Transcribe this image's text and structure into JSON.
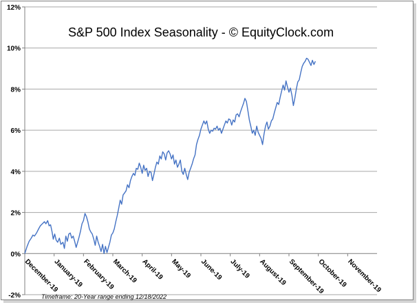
{
  "chart_data": {
    "type": "line",
    "title": "S&P 500 Index Seasonality - © EquityClock.com",
    "footnote": "Timeframe: 20-Year range ending 12/18/2022",
    "xlabel": "",
    "ylabel": "",
    "ylim": [
      -2,
      12
    ],
    "yticks": [
      -2,
      0,
      2,
      4,
      6,
      8,
      10,
      12
    ],
    "ytick_labels": [
      "-2%",
      "0%",
      "2%",
      "4%",
      "6%",
      "8%",
      "10%",
      "12%"
    ],
    "month_labels": [
      "December-19",
      "January-19",
      "February-19",
      "March-19",
      "April-19",
      "May-19",
      "June-19",
      "July-19",
      "August-19",
      "September-19",
      "October-19",
      "November-19"
    ],
    "x_range": [
      0,
      12
    ],
    "line_color": "#4472c4",
    "grid_color": "#a6a6a6",
    "series": [
      {
        "name": "S&P 500 Seasonality",
        "points": [
          [
            0.0,
            0.0
          ],
          [
            0.08,
            0.35
          ],
          [
            0.15,
            0.6
          ],
          [
            0.22,
            0.75
          ],
          [
            0.28,
            0.9
          ],
          [
            0.33,
            0.85
          ],
          [
            0.4,
            1.0
          ],
          [
            0.47,
            1.2
          ],
          [
            0.53,
            1.35
          ],
          [
            0.6,
            1.45
          ],
          [
            0.67,
            1.55
          ],
          [
            0.72,
            1.45
          ],
          [
            0.78,
            1.6
          ],
          [
            0.83,
            1.35
          ],
          [
            0.88,
            1.4
          ],
          [
            0.93,
            1.05
          ],
          [
            0.97,
            0.7
          ],
          [
            1.02,
            0.95
          ],
          [
            1.07,
            0.65
          ],
          [
            1.12,
            0.55
          ],
          [
            1.18,
            0.75
          ],
          [
            1.23,
            0.45
          ],
          [
            1.3,
            0.55
          ],
          [
            1.35,
            0.25
          ],
          [
            1.4,
            0.85
          ],
          [
            1.45,
            0.6
          ],
          [
            1.5,
            0.95
          ],
          [
            1.55,
            1.0
          ],
          [
            1.6,
            0.75
          ],
          [
            1.65,
            0.85
          ],
          [
            1.7,
            0.6
          ],
          [
            1.75,
            0.3
          ],
          [
            1.8,
            0.55
          ],
          [
            1.85,
            0.8
          ],
          [
            1.9,
            1.1
          ],
          [
            1.95,
            1.45
          ],
          [
            2.0,
            1.6
          ],
          [
            2.05,
            1.95
          ],
          [
            2.1,
            1.8
          ],
          [
            2.15,
            1.55
          ],
          [
            2.2,
            1.2
          ],
          [
            2.25,
            1.05
          ],
          [
            2.3,
            0.95
          ],
          [
            2.35,
            0.7
          ],
          [
            2.4,
            0.4
          ],
          [
            2.45,
            0.85
          ],
          [
            2.5,
            0.55
          ],
          [
            2.55,
            0.35
          ],
          [
            2.6,
            0.1
          ],
          [
            2.65,
            0.45
          ],
          [
            2.7,
            0.0
          ],
          [
            2.75,
            0.35
          ],
          [
            2.8,
            0.05
          ],
          [
            2.85,
            0.3
          ],
          [
            2.9,
            0.55
          ],
          [
            2.95,
            0.9
          ],
          [
            3.0,
            1.0
          ],
          [
            3.05,
            1.2
          ],
          [
            3.1,
            1.55
          ],
          [
            3.15,
            1.85
          ],
          [
            3.2,
            2.2
          ],
          [
            3.25,
            2.6
          ],
          [
            3.3,
            2.4
          ],
          [
            3.35,
            2.85
          ],
          [
            3.4,
            2.95
          ],
          [
            3.45,
            3.05
          ],
          [
            3.5,
            3.35
          ],
          [
            3.55,
            3.2
          ],
          [
            3.6,
            3.55
          ],
          [
            3.65,
            3.75
          ],
          [
            3.7,
            3.9
          ],
          [
            3.75,
            3.8
          ],
          [
            3.8,
            4.15
          ],
          [
            3.85,
            4.1
          ],
          [
            3.9,
            4.4
          ],
          [
            3.95,
            4.2
          ],
          [
            4.0,
            3.9
          ],
          [
            4.05,
            4.3
          ],
          [
            4.1,
            4.05
          ],
          [
            4.15,
            4.15
          ],
          [
            4.2,
            3.75
          ],
          [
            4.25,
            4.0
          ],
          [
            4.3,
            3.95
          ],
          [
            4.35,
            3.55
          ],
          [
            4.4,
            3.85
          ],
          [
            4.45,
            4.2
          ],
          [
            4.5,
            4.45
          ],
          [
            4.55,
            4.35
          ],
          [
            4.6,
            4.75
          ],
          [
            4.65,
            4.6
          ],
          [
            4.7,
            4.95
          ],
          [
            4.75,
            4.85
          ],
          [
            4.8,
            4.55
          ],
          [
            4.85,
            4.9
          ],
          [
            4.9,
            5.0
          ],
          [
            4.95,
            4.85
          ],
          [
            5.0,
            4.6
          ],
          [
            5.05,
            4.8
          ],
          [
            5.1,
            4.35
          ],
          [
            5.15,
            4.55
          ],
          [
            5.2,
            4.2
          ],
          [
            5.25,
            4.35
          ],
          [
            5.3,
            4.55
          ],
          [
            5.35,
            4.0
          ],
          [
            5.4,
            3.85
          ],
          [
            5.45,
            4.15
          ],
          [
            5.5,
            3.85
          ],
          [
            5.55,
            3.6
          ],
          [
            5.6,
            3.95
          ],
          [
            5.65,
            4.15
          ],
          [
            5.7,
            4.35
          ],
          [
            5.75,
            4.6
          ],
          [
            5.8,
            4.8
          ],
          [
            5.85,
            5.3
          ],
          [
            5.9,
            5.55
          ],
          [
            5.95,
            5.75
          ],
          [
            6.0,
            6.05
          ],
          [
            6.05,
            6.25
          ],
          [
            6.1,
            6.45
          ],
          [
            6.15,
            6.3
          ],
          [
            6.2,
            6.45
          ],
          [
            6.25,
            6.05
          ],
          [
            6.3,
            5.85
          ],
          [
            6.35,
            6.0
          ],
          [
            6.4,
            5.95
          ],
          [
            6.45,
            6.1
          ],
          [
            6.5,
            6.05
          ],
          [
            6.55,
            6.2
          ],
          [
            6.6,
            6.0
          ],
          [
            6.65,
            6.1
          ],
          [
            6.7,
            5.85
          ],
          [
            6.75,
            6.05
          ],
          [
            6.8,
            6.25
          ],
          [
            6.85,
            6.45
          ],
          [
            6.9,
            6.35
          ],
          [
            6.95,
            6.55
          ],
          [
            7.0,
            6.5
          ],
          [
            7.05,
            6.25
          ],
          [
            7.1,
            6.5
          ],
          [
            7.15,
            6.4
          ],
          [
            7.2,
            6.75
          ],
          [
            7.25,
            6.8
          ],
          [
            7.3,
            6.65
          ],
          [
            7.35,
            6.9
          ],
          [
            7.4,
            7.1
          ],
          [
            7.45,
            7.3
          ],
          [
            7.5,
            7.55
          ],
          [
            7.55,
            7.4
          ],
          [
            7.6,
            6.95
          ],
          [
            7.65,
            6.5
          ],
          [
            7.7,
            6.2
          ],
          [
            7.75,
            5.85
          ],
          [
            7.8,
            6.0
          ],
          [
            7.85,
            5.75
          ],
          [
            7.9,
            6.2
          ],
          [
            7.95,
            5.9
          ],
          [
            8.0,
            5.75
          ],
          [
            8.05,
            5.6
          ],
          [
            8.1,
            5.3
          ],
          [
            8.15,
            5.8
          ],
          [
            8.2,
            6.2
          ],
          [
            8.25,
            6.4
          ],
          [
            8.3,
            6.05
          ],
          [
            8.35,
            6.2
          ],
          [
            8.4,
            6.45
          ],
          [
            8.45,
            6.55
          ],
          [
            8.5,
            6.85
          ],
          [
            8.55,
            7.1
          ],
          [
            8.6,
            7.35
          ],
          [
            8.65,
            7.25
          ],
          [
            8.7,
            7.6
          ],
          [
            8.75,
            7.9
          ],
          [
            8.8,
            8.2
          ],
          [
            8.85,
            7.95
          ],
          [
            8.9,
            8.4
          ],
          [
            8.95,
            8.1
          ],
          [
            9.0,
            7.85
          ],
          [
            9.05,
            8.05
          ],
          [
            9.1,
            7.7
          ],
          [
            9.15,
            7.2
          ],
          [
            9.2,
            7.55
          ],
          [
            9.25,
            8.0
          ],
          [
            9.3,
            8.35
          ],
          [
            9.35,
            8.45
          ],
          [
            9.4,
            8.8
          ],
          [
            9.45,
            9.1
          ],
          [
            9.5,
            9.25
          ],
          [
            9.55,
            9.35
          ],
          [
            9.6,
            9.5
          ],
          [
            9.65,
            9.45
          ],
          [
            9.7,
            9.3
          ],
          [
            9.75,
            9.15
          ],
          [
            9.8,
            9.4
          ],
          [
            9.85,
            9.2
          ],
          [
            9.9,
            9.35
          ]
        ]
      }
    ]
  }
}
